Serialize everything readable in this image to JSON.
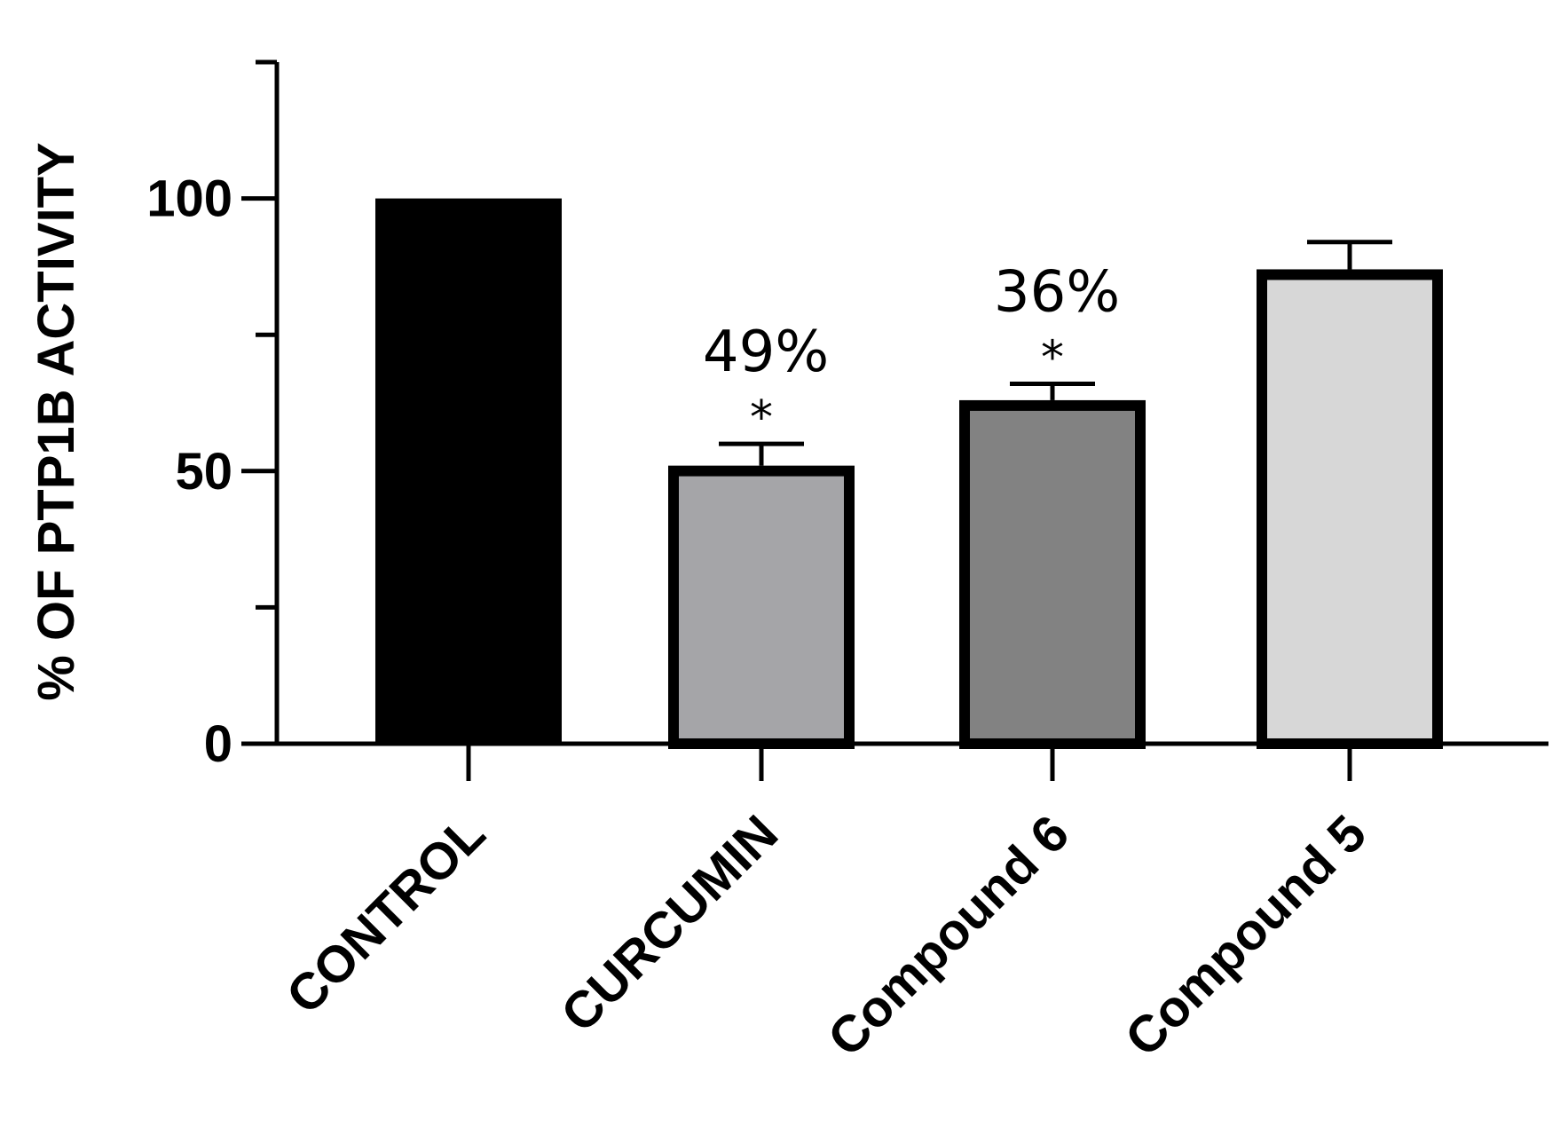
{
  "chart_data": {
    "type": "bar",
    "title": "",
    "xlabel": "",
    "ylabel": "% OF PTP1B ACTIVITY",
    "ylim": [
      0,
      125
    ],
    "y_ticks_major": [
      0,
      50,
      100
    ],
    "y_ticks_minor": [
      25,
      75,
      125
    ],
    "grid": false,
    "categories": [
      "CONTROL",
      "CURCUMIN",
      "Compound 6",
      "Compound 5"
    ],
    "values": [
      100,
      51,
      63,
      87
    ],
    "errors": [
      0,
      4,
      3,
      5
    ],
    "bar_colors": [
      "#000000",
      "#a5a5a8",
      "#828282",
      "#d7d7d7"
    ],
    "significance": [
      "",
      "*",
      "*",
      ""
    ],
    "percent_labels": [
      "",
      "49%",
      "36%",
      ""
    ]
  }
}
